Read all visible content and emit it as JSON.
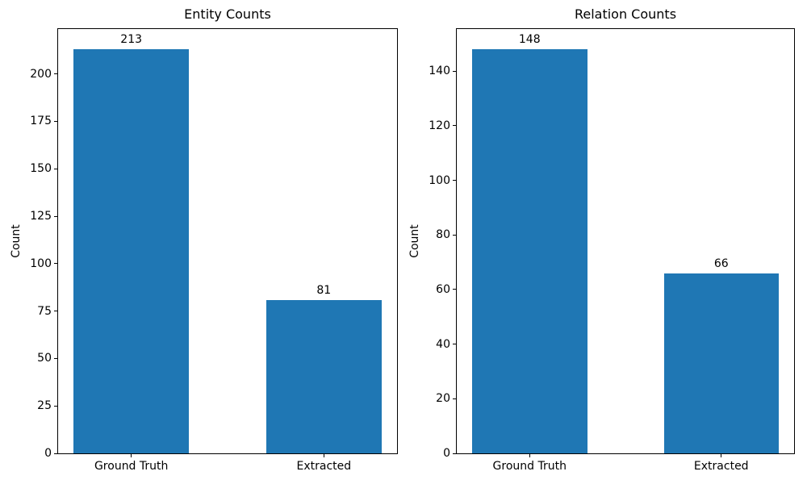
{
  "figure": {
    "background_color": "#ffffff",
    "bar_color": "#1f77b4",
    "axis_color": "#000000",
    "text_color": "#000000"
  },
  "chart_data": [
    {
      "type": "bar",
      "title": "Entity Counts",
      "xlabel": "",
      "ylabel": "Count",
      "categories": [
        "Ground Truth",
        "Extracted"
      ],
      "values": [
        213,
        81
      ],
      "yticks": [
        0,
        25,
        50,
        75,
        100,
        125,
        150,
        175,
        200
      ],
      "ylim": [
        0,
        223.65
      ],
      "xlim": [
        -0.38,
        1.38
      ],
      "bar_width": 0.6,
      "grid": false,
      "legend": "none",
      "bar_value_labels_shown": true
    },
    {
      "type": "bar",
      "title": "Relation Counts",
      "xlabel": "",
      "ylabel": "Count",
      "categories": [
        "Ground Truth",
        "Extracted"
      ],
      "values": [
        148,
        66
      ],
      "yticks": [
        0,
        20,
        40,
        60,
        80,
        100,
        120,
        140
      ],
      "ylim": [
        0,
        155.4
      ],
      "xlim": [
        -0.38,
        1.38
      ],
      "bar_width": 0.6,
      "grid": false,
      "legend": "none",
      "bar_value_labels_shown": true
    }
  ]
}
